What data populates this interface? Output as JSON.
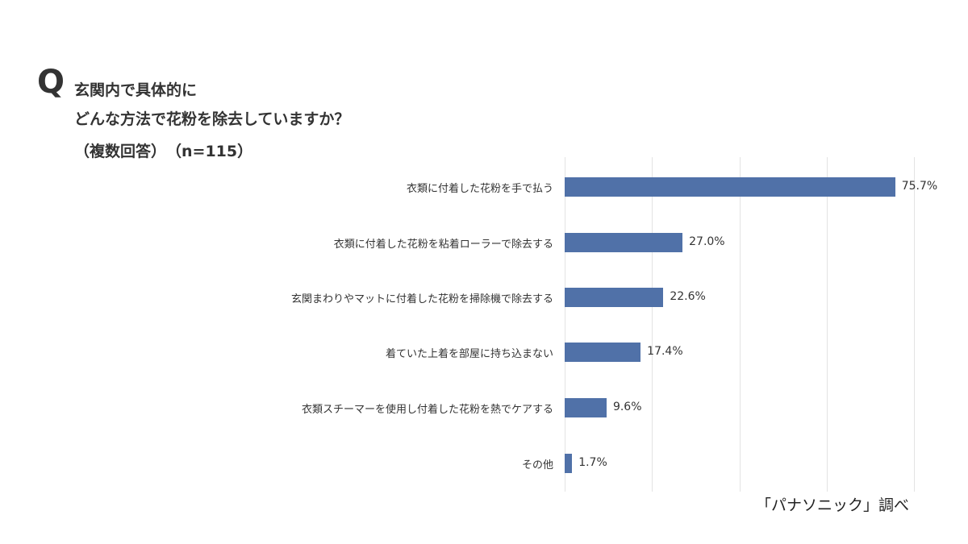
{
  "title": {
    "q_mark": "Q",
    "line1": "玄関内で具体的に",
    "line2": "どんな方法で花粉を除去していますか？",
    "line3": "（複数回答）　（n=115）"
  },
  "source": "「パナソニック」調べ",
  "colors": {
    "bar": "#5071a8",
    "grid": "#e3e3e3",
    "text": "#333333"
  },
  "chart_data": {
    "type": "bar",
    "orientation": "horizontal",
    "title": "玄関内で具体的にどんな方法で花粉を除去していますか？（複数回答）（n=115）",
    "xlabel": "",
    "ylabel": "",
    "xlim": [
      0,
      80
    ],
    "grid": true,
    "gridlines": [
      0,
      20,
      40,
      60,
      80
    ],
    "categories": [
      "衣類に付着した花粉を手で払う",
      "衣類に付着した花粉を粘着ローラーで除去する",
      "玄関まわりやマットに付着した花粉を掃除機で除去する",
      "着ていた上着を部屋に持ち込まない",
      "衣類スチーマーを使用し付着した花粉を熱でケアする",
      "その他"
    ],
    "values": [
      75.7,
      27.0,
      22.6,
      17.4,
      9.6,
      1.7
    ],
    "labels": [
      "75.7%",
      "27.0%",
      "22.6%",
      "17.4%",
      "9.6%",
      "1.7%"
    ],
    "unit": "%",
    "n": 115,
    "source": "「パナソニック」調べ"
  }
}
